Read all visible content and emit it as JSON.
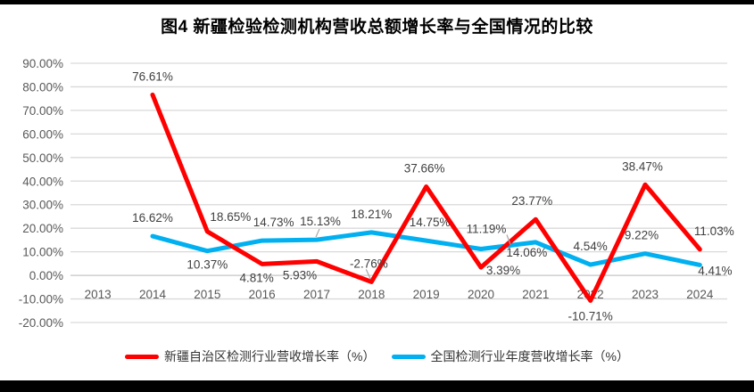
{
  "chart_data": {
    "type": "line",
    "title": "图4 新疆检验检测机构营收总额增长率与全国情况的比较",
    "categories": [
      "2013",
      "2014",
      "2015",
      "2016",
      "2017",
      "2018",
      "2019",
      "2020",
      "2021",
      "2022",
      "2023",
      "2024"
    ],
    "y_axis": {
      "min": -20,
      "max": 90,
      "step": 10,
      "tick_labels": [
        "90.00%",
        "80.00%",
        "70.00%",
        "60.00%",
        "50.00%",
        "40.00%",
        "30.00%",
        "20.00%",
        "10.00%",
        "0.00%",
        "-10.00%",
        "-20.00%"
      ],
      "grid": true
    },
    "legend_position": "bottom",
    "series": [
      {
        "name": "新疆自治区检测行业营收增长率（%）",
        "color": "#FF0000",
        "values": [
          null,
          76.61,
          18.65,
          4.81,
          5.93,
          -2.76,
          37.66,
          3.39,
          23.77,
          -10.71,
          38.47,
          11.03
        ],
        "data_labels": [
          "",
          "76.61%",
          "18.65%",
          "4.81%",
          "5.93%",
          "-2.76%",
          "37.66%",
          "3.39%",
          "23.77%",
          "-10.71%",
          "38.47%",
          "11.03%"
        ],
        "label_side": [
          null,
          "above",
          "above",
          "below",
          "below",
          "above",
          "above",
          "below",
          "above",
          "below",
          "above",
          "above"
        ],
        "label_dx": [
          0,
          0,
          26,
          -6,
          -19,
          -3,
          -2,
          25,
          -4,
          0,
          -3,
          16
        ],
        "label_dy": [
          0,
          0,
          4,
          0,
          0,
          0,
          0,
          -12,
          0,
          2,
          0,
          0
        ]
      },
      {
        "name": "全国检测行业年度营收增长率（%）",
        "color": "#00B0F0",
        "values": [
          null,
          16.62,
          10.37,
          14.73,
          15.13,
          18.21,
          14.75,
          11.19,
          14.06,
          4.54,
          9.22,
          4.41
        ],
        "data_labels": [
          "",
          "16.62%",
          "10.37%",
          "14.73%",
          "15.13%",
          "18.21%",
          "14.75%",
          "11.19%",
          "14.06%",
          "4.54%",
          "9.22%",
          "4.41%"
        ],
        "label_side": [
          null,
          "above",
          "below",
          "above",
          "above",
          "above",
          "above",
          "above",
          "below",
          "above",
          "above",
          "below"
        ],
        "label_dx": [
          0,
          0,
          0,
          13,
          4,
          0,
          4,
          6,
          -10,
          0,
          -4,
          17
        ],
        "label_dy": [
          0,
          0,
          0,
          0,
          0,
          0,
          0,
          -2,
          -4,
          0,
          0,
          -9
        ]
      }
    ],
    "label_leaders": [
      {
        "series": 1,
        "index": 4,
        "from": [
          3,
          -12
        ],
        "to": [
          -1,
          -3
        ]
      },
      {
        "series": 0,
        "index": 5,
        "from": [
          -6,
          -14
        ],
        "to": [
          -1,
          -3
        ]
      },
      {
        "series": 1,
        "index": 7,
        "from": [
          29,
          -16
        ],
        "to": [
          33,
          -5
        ]
      }
    ]
  },
  "colors": {
    "grid_line": "#D9D9D9",
    "zero_line": "#C6C6C6",
    "tick_text": "#595959",
    "data_label_text": "#404040",
    "leader_line": "#A6A6A6",
    "legend_text": "#333333",
    "title_text": "#000000",
    "border": "#000000"
  }
}
